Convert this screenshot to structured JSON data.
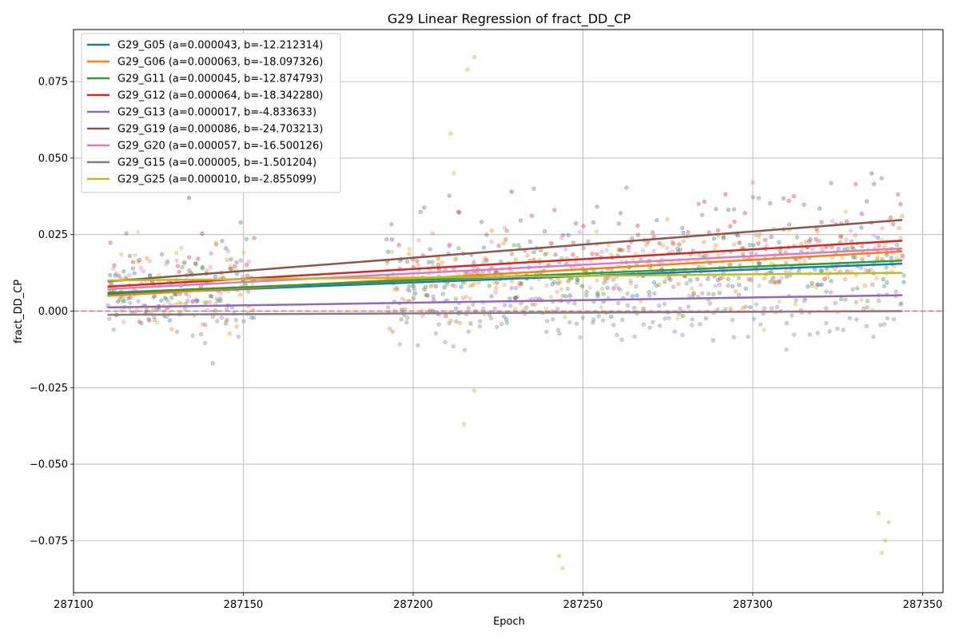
{
  "chart_data": {
    "type": "scatter",
    "title": "G29 Linear Regression of fract_DD_CP",
    "xlabel": "Epoch",
    "ylabel": "fract_DD_CP",
    "xlim": [
      287100,
      287356
    ],
    "ylim": [
      -0.092,
      0.092
    ],
    "x_ticks": [
      287100,
      287150,
      287200,
      287250,
      287300,
      287350
    ],
    "x_tick_labels": [
      "287100",
      "287150",
      "287200",
      "287250",
      "287300",
      "287350"
    ],
    "y_ticks": [
      -0.075,
      -0.05,
      -0.025,
      0.0,
      0.025,
      0.05,
      0.075
    ],
    "y_tick_labels": [
      "−0.075",
      "−0.050",
      "−0.025",
      "0.000",
      "0.025",
      "0.050",
      "0.075"
    ],
    "grid": true,
    "legend_position": "top-left",
    "reference_line": {
      "y": 0.0,
      "style": "dashed",
      "color": "#e05555"
    },
    "epoch_segments": [
      [
        287110,
        287153
      ],
      [
        287192,
        287344
      ]
    ],
    "series": [
      {
        "name": "G29_G05 (a=0.000043, b=-12.212314)",
        "color": "#1f77b4",
        "line": {
          "x": [
            287110,
            287344
          ],
          "y": [
            0.0055,
            0.0155
          ]
        },
        "noise": 0.006
      },
      {
        "name": "G29_G06 (a=0.000063, b=-18.097326)",
        "color": "#ff7f0e",
        "line": {
          "x": [
            287110,
            287344
          ],
          "y": [
            0.005,
            0.0195
          ]
        },
        "noise": 0.007
      },
      {
        "name": "G29_G11 (a=0.000045, b=-12.874793)",
        "color": "#2ca02c",
        "line": {
          "x": [
            287110,
            287344
          ],
          "y": [
            0.006,
            0.0165
          ]
        },
        "noise": 0.006
      },
      {
        "name": "G29_G12 (a=0.000064, b=-18.342280)",
        "color": "#d62728",
        "line": {
          "x": [
            287110,
            287344
          ],
          "y": [
            0.008,
            0.023
          ]
        },
        "noise": 0.008
      },
      {
        "name": "G29_G13 (a=0.000017, b=-4.833633)",
        "color": "#9467bd",
        "line": {
          "x": [
            287110,
            287344
          ],
          "y": [
            0.0012,
            0.0052
          ]
        },
        "noise": 0.007
      },
      {
        "name": "G29_G19 (a=0.000086, b=-24.703213)",
        "color": "#8c564b",
        "line": {
          "x": [
            287110,
            287344
          ],
          "y": [
            0.0097,
            0.0298
          ]
        },
        "noise": 0.008
      },
      {
        "name": "G29_G20 (a=0.000057, b=-16.500126)",
        "color": "#e377c2",
        "line": {
          "x": [
            287110,
            287344
          ],
          "y": [
            0.0072,
            0.0205
          ]
        },
        "noise": 0.006
      },
      {
        "name": "G29_G15 (a=0.000005, b=-1.501204)",
        "color": "#7f7f7f",
        "line": {
          "x": [
            287110,
            287344
          ],
          "y": [
            -0.0012,
            0.0
          ]
        },
        "noise": 0.006
      },
      {
        "name": "G29_G25 (a=0.000010, b=-2.855099)",
        "color": "#bcbd22",
        "line": {
          "x": [
            287110,
            287344
          ],
          "y": [
            0.01,
            0.0125
          ]
        },
        "noise": 0.007
      }
    ],
    "outliers": [
      {
        "series": "G29_G25",
        "x": 287218,
        "y": 0.083
      },
      {
        "series": "G29_G25",
        "x": 287216,
        "y": 0.079
      },
      {
        "series": "G29_G25",
        "x": 287211,
        "y": 0.058
      },
      {
        "series": "G29_G25",
        "x": 287212,
        "y": 0.045
      },
      {
        "series": "G29_G25",
        "x": 287218,
        "y": -0.026
      },
      {
        "series": "G29_G25",
        "x": 287215,
        "y": -0.037
      },
      {
        "series": "G29_G25",
        "x": 287243,
        "y": -0.08
      },
      {
        "series": "G29_G25",
        "x": 287244,
        "y": -0.084
      },
      {
        "series": "G29_G25",
        "x": 287337,
        "y": -0.066
      },
      {
        "series": "G29_G25",
        "x": 287338,
        "y": -0.079
      },
      {
        "series": "G29_G25",
        "x": 287339,
        "y": -0.075
      },
      {
        "series": "G29_G25",
        "x": 287340,
        "y": -0.069
      },
      {
        "series": "G29_G13",
        "x": 287141,
        "y": -0.017
      },
      {
        "series": "G29_G19",
        "x": 287134,
        "y": 0.037
      },
      {
        "series": "G29_G19",
        "x": 287335,
        "y": 0.045
      },
      {
        "series": "G29_G20",
        "x": 287300,
        "y": 0.042
      },
      {
        "series": "G29_G12",
        "x": 287229,
        "y": 0.039
      }
    ]
  }
}
